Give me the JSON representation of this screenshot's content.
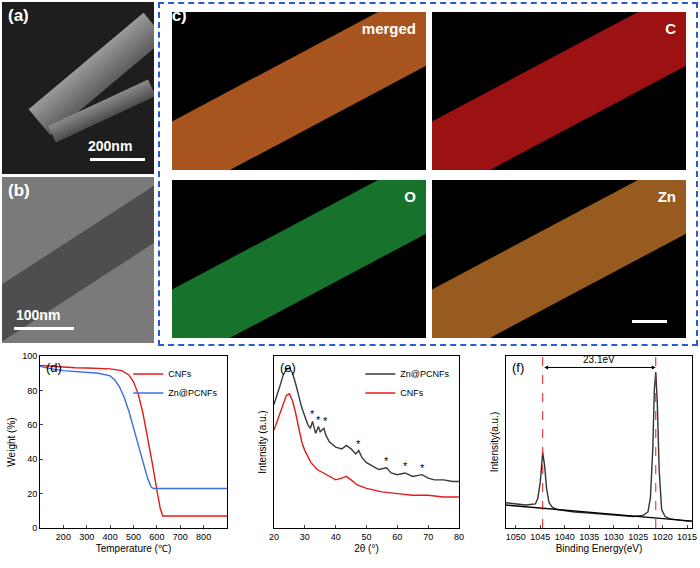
{
  "panels": {
    "a": {
      "label": "(a)",
      "scale_bar": "200nm"
    },
    "b": {
      "label": "(b)",
      "scale_bar": "100nm"
    },
    "c": {
      "label": "(c)",
      "maps": [
        "merged",
        "C",
        "O",
        "Zn"
      ]
    }
  },
  "chart_data": [
    {
      "label": "(d)",
      "type": "line",
      "x_label": "Temperature (℃)",
      "y_label": "Weight (%)",
      "xlim": [
        100,
        900
      ],
      "xticks": [
        200,
        300,
        400,
        500,
        600,
        700,
        800
      ],
      "ylim": [
        0,
        100
      ],
      "yticks": [
        0,
        20,
        40,
        60,
        80,
        100
      ],
      "legend": "upper right",
      "series": [
        {
          "name": "CNFs",
          "color": "#e8191a",
          "x": [
            100,
            150,
            200,
            250,
            300,
            350,
            400,
            450,
            480,
            500,
            520,
            540,
            560,
            580,
            600,
            615,
            625,
            650,
            700,
            800,
            900
          ],
          "values": [
            94.5,
            94,
            93.5,
            93.2,
            93,
            92.8,
            92.5,
            91.5,
            89,
            85,
            78,
            67,
            53,
            38,
            22,
            11,
            7,
            7,
            7,
            7,
            7
          ]
        },
        {
          "name": "Zn@PCNFs",
          "color": "#3b6fe0",
          "x": [
            100,
            150,
            200,
            250,
            300,
            350,
            400,
            420,
            440,
            460,
            480,
            500,
            520,
            540,
            560,
            575,
            585,
            600,
            700,
            800,
            900
          ],
          "values": [
            94,
            92.5,
            91.5,
            91,
            90.5,
            90,
            88.5,
            86,
            82,
            76,
            68,
            58,
            48,
            38,
            29,
            24,
            23,
            23,
            23,
            23,
            23
          ]
        }
      ]
    },
    {
      "label": "(e)",
      "type": "line",
      "x_label": "2θ (°)",
      "y_label": "Intensity (a.u.)",
      "xlim": [
        20,
        80
      ],
      "xticks": [
        20,
        30,
        40,
        50,
        60,
        70,
        80
      ],
      "ylim": [
        0,
        100
      ],
      "tick_labels": "x",
      "legend": "upper right",
      "series": [
        {
          "name": "Zn@PCNFs",
          "color": "#3a3a3a",
          "x": [
            20,
            21,
            22,
            23,
            24,
            25,
            26,
            27,
            28,
            29,
            30,
            31,
            31.8,
            32.5,
            33.5,
            34.4,
            35,
            36.2,
            36.8,
            38,
            40,
            42,
            43.5,
            45,
            46.5,
            47.5,
            48.5,
            50,
            52,
            54,
            56.5,
            58,
            60,
            62.5,
            65,
            68,
            70,
            72,
            75,
            78,
            80
          ],
          "values": [
            72,
            77,
            83,
            89,
            92,
            93,
            90,
            84,
            77,
            70,
            65,
            60,
            58,
            62,
            55,
            59,
            56,
            58,
            54,
            50,
            47,
            46,
            48,
            46,
            43,
            45,
            41,
            38,
            36,
            34,
            35,
            32,
            31,
            32,
            30,
            31,
            29,
            28,
            28,
            27,
            27
          ]
        },
        {
          "name": "CNFs",
          "color": "#e8191a",
          "x": [
            20,
            21,
            22,
            23,
            24,
            25,
            26,
            27,
            28,
            29,
            30,
            32,
            34,
            36,
            38,
            40,
            42,
            43.5,
            45,
            47,
            50,
            55,
            60,
            65,
            70,
            75,
            80
          ],
          "values": [
            57,
            62,
            68,
            73,
            77,
            78,
            74,
            67,
            58,
            50,
            45,
            38,
            34,
            32,
            30,
            28,
            29,
            30,
            28,
            25,
            23,
            21,
            20,
            19,
            19,
            18,
            18
          ]
        }
      ],
      "annotations": [
        {
          "x": 32.5,
          "y": 66,
          "text": "*"
        },
        {
          "x": 34.4,
          "y": 63,
          "text": "*"
        },
        {
          "x": 36.8,
          "y": 62,
          "text": "*"
        },
        {
          "x": 47.5,
          "y": 49,
          "text": "*"
        },
        {
          "x": 56.5,
          "y": 39,
          "text": "*"
        },
        {
          "x": 62.5,
          "y": 36,
          "text": "*"
        },
        {
          "x": 68,
          "y": 35,
          "text": "*"
        }
      ]
    },
    {
      "label": "(f)",
      "type": "line",
      "x_label": "Binding Energy(eV)",
      "y_label": "Intensity(a.u.)",
      "xlim": [
        1052,
        1014
      ],
      "xticks": [
        1050,
        1045,
        1040,
        1035,
        1030,
        1025,
        1020,
        1015
      ],
      "ylim": [
        25,
        100
      ],
      "tick_labels": "x",
      "series": [
        {
          "color": "#333333",
          "x": [
            1052,
            1050,
            1048,
            1046,
            1045.5,
            1045,
            1044.7,
            1044.5,
            1044.1,
            1043.7,
            1043.2,
            1042.5,
            1041.5,
            1040,
            1038,
            1035,
            1032,
            1029,
            1026,
            1024,
            1023,
            1022.5,
            1022,
            1021.7,
            1021.4,
            1021.1,
            1020.7,
            1020.2,
            1019.5,
            1018.5,
            1017,
            1015,
            1014
          ],
          "values": [
            36,
            35.5,
            35,
            35.5,
            38,
            45,
            55,
            58,
            52,
            42,
            36,
            34,
            33,
            32.5,
            32,
            31.5,
            31,
            30.5,
            30,
            30.5,
            32,
            38,
            60,
            85,
            93,
            80,
            50,
            33,
            30,
            29,
            28.5,
            28,
            28
          ]
        },
        {
          "color": "#000000",
          "x": [
            1052,
            1014
          ],
          "values": [
            35,
            28
          ]
        }
      ],
      "peak_separation": {
        "x": [
          1044.5,
          1021.4
        ],
        "y": 95,
        "text": "23.1eV",
        "color": "#e8191a"
      }
    }
  ]
}
